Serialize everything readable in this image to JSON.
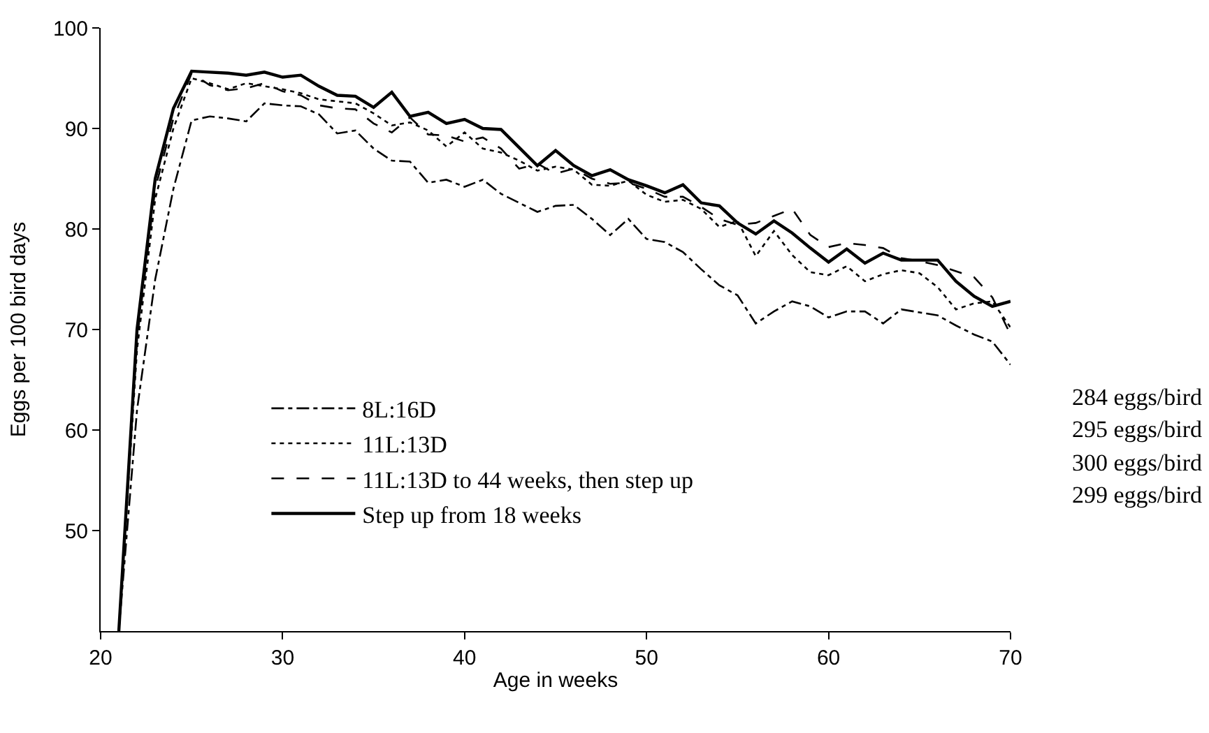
{
  "chart_data": {
    "type": "line",
    "xlabel": "Age in weeks",
    "ylabel": "Eggs per 100 bird days",
    "x": [
      21,
      22,
      23,
      24,
      25,
      26,
      27,
      28,
      29,
      30,
      31,
      32,
      33,
      34,
      35,
      36,
      37,
      38,
      39,
      40,
      41,
      42,
      43,
      44,
      45,
      46,
      47,
      48,
      49,
      50,
      51,
      52,
      53,
      54,
      55,
      56,
      57,
      58,
      59,
      60,
      61,
      62,
      63,
      64,
      65,
      66,
      67,
      68,
      69,
      70
    ],
    "series": [
      {
        "name": "8L:16D",
        "color": "#000000",
        "line_style": "dashdot",
        "values": [
          40,
          62,
          75,
          84,
          90.8,
          91.2,
          91.0,
          90.7,
          92.5,
          92.3,
          92.2,
          91.4,
          89.5,
          89.8,
          88.0,
          86.8,
          86.7,
          84.6,
          84.9,
          84.2,
          84.9,
          83.5,
          82.6,
          81.7,
          82.3,
          82.4,
          81.0,
          79.4,
          81.0,
          79.0,
          78.7,
          77.7,
          76.0,
          74.4,
          73.4,
          70.6,
          71.8,
          72.8,
          72.3,
          71.2,
          71.8,
          71.8,
          70.6,
          72.0,
          71.7,
          71.4,
          70.4,
          69.5,
          68.8,
          66.5
        ]
      },
      {
        "name": "11L:13D",
        "color": "#000000",
        "line_style": "dotted",
        "values": [
          40,
          68,
          83,
          90,
          95,
          94.5,
          93.9,
          94.5,
          94.2,
          93.9,
          93.5,
          92.9,
          92.7,
          92.5,
          91.5,
          90.3,
          90.6,
          89.8,
          88.2,
          89.6,
          88.0,
          87.6,
          86.8,
          85.8,
          86.2,
          85.9,
          84.4,
          84.3,
          84.8,
          83.4,
          82.7,
          82.9,
          82.0,
          80.2,
          80.8,
          77.3,
          79.8,
          77.4,
          75.7,
          75.4,
          76.3,
          74.8,
          75.5,
          75.9,
          75.6,
          74.2,
          72.0,
          72.6,
          72.8,
          70.2
        ]
      },
      {
        "name": "11L:13D to 44 weeks, then step up",
        "color": "#000000",
        "line_style": "dashed",
        "values": [
          40,
          69,
          84,
          91,
          95.5,
          94.3,
          93.8,
          94.0,
          94.5,
          93.7,
          93.3,
          92.3,
          92.0,
          91.9,
          90.5,
          89.6,
          91.1,
          89.4,
          89.3,
          88.7,
          89.1,
          88.0,
          86.0,
          86.5,
          85.5,
          86.0,
          85.0,
          84.5,
          84.6,
          84.0,
          83.2,
          83.2,
          82.2,
          81.0,
          80.4,
          80.6,
          81.3,
          82.0,
          79.4,
          78.2,
          78.6,
          78.4,
          78.1,
          77.1,
          76.8,
          76.4,
          75.8,
          75.2,
          73.2,
          69.5
        ]
      },
      {
        "name": "Step up from 18 weeks",
        "color": "#000000",
        "line_style": "solid",
        "values": [
          40,
          70,
          85,
          92,
          95.7,
          95.6,
          95.5,
          95.3,
          95.6,
          95.1,
          95.3,
          94.2,
          93.3,
          93.2,
          92.1,
          93.6,
          91.2,
          91.6,
          90.5,
          90.9,
          90.0,
          89.9,
          88.1,
          86.3,
          87.8,
          86.3,
          85.3,
          85.9,
          84.9,
          84.3,
          83.6,
          84.4,
          82.6,
          82.3,
          80.6,
          79.5,
          80.8,
          79.6,
          78.1,
          76.7,
          78.0,
          76.6,
          77.6,
          76.9,
          76.9,
          76.9,
          74.8,
          73.3,
          72.3,
          72.8
        ]
      }
    ],
    "xlim": [
      20,
      70
    ],
    "xticks": [
      20,
      30,
      40,
      50,
      60,
      70
    ],
    "ylim": [
      40,
      100
    ],
    "yticks": [
      50,
      60,
      70,
      80,
      90,
      100
    ],
    "legend": "bottom",
    "annotations": [
      "284 eggs/bird",
      "295 eggs/bird",
      "300 eggs/bird",
      "299 eggs/bird"
    ]
  }
}
